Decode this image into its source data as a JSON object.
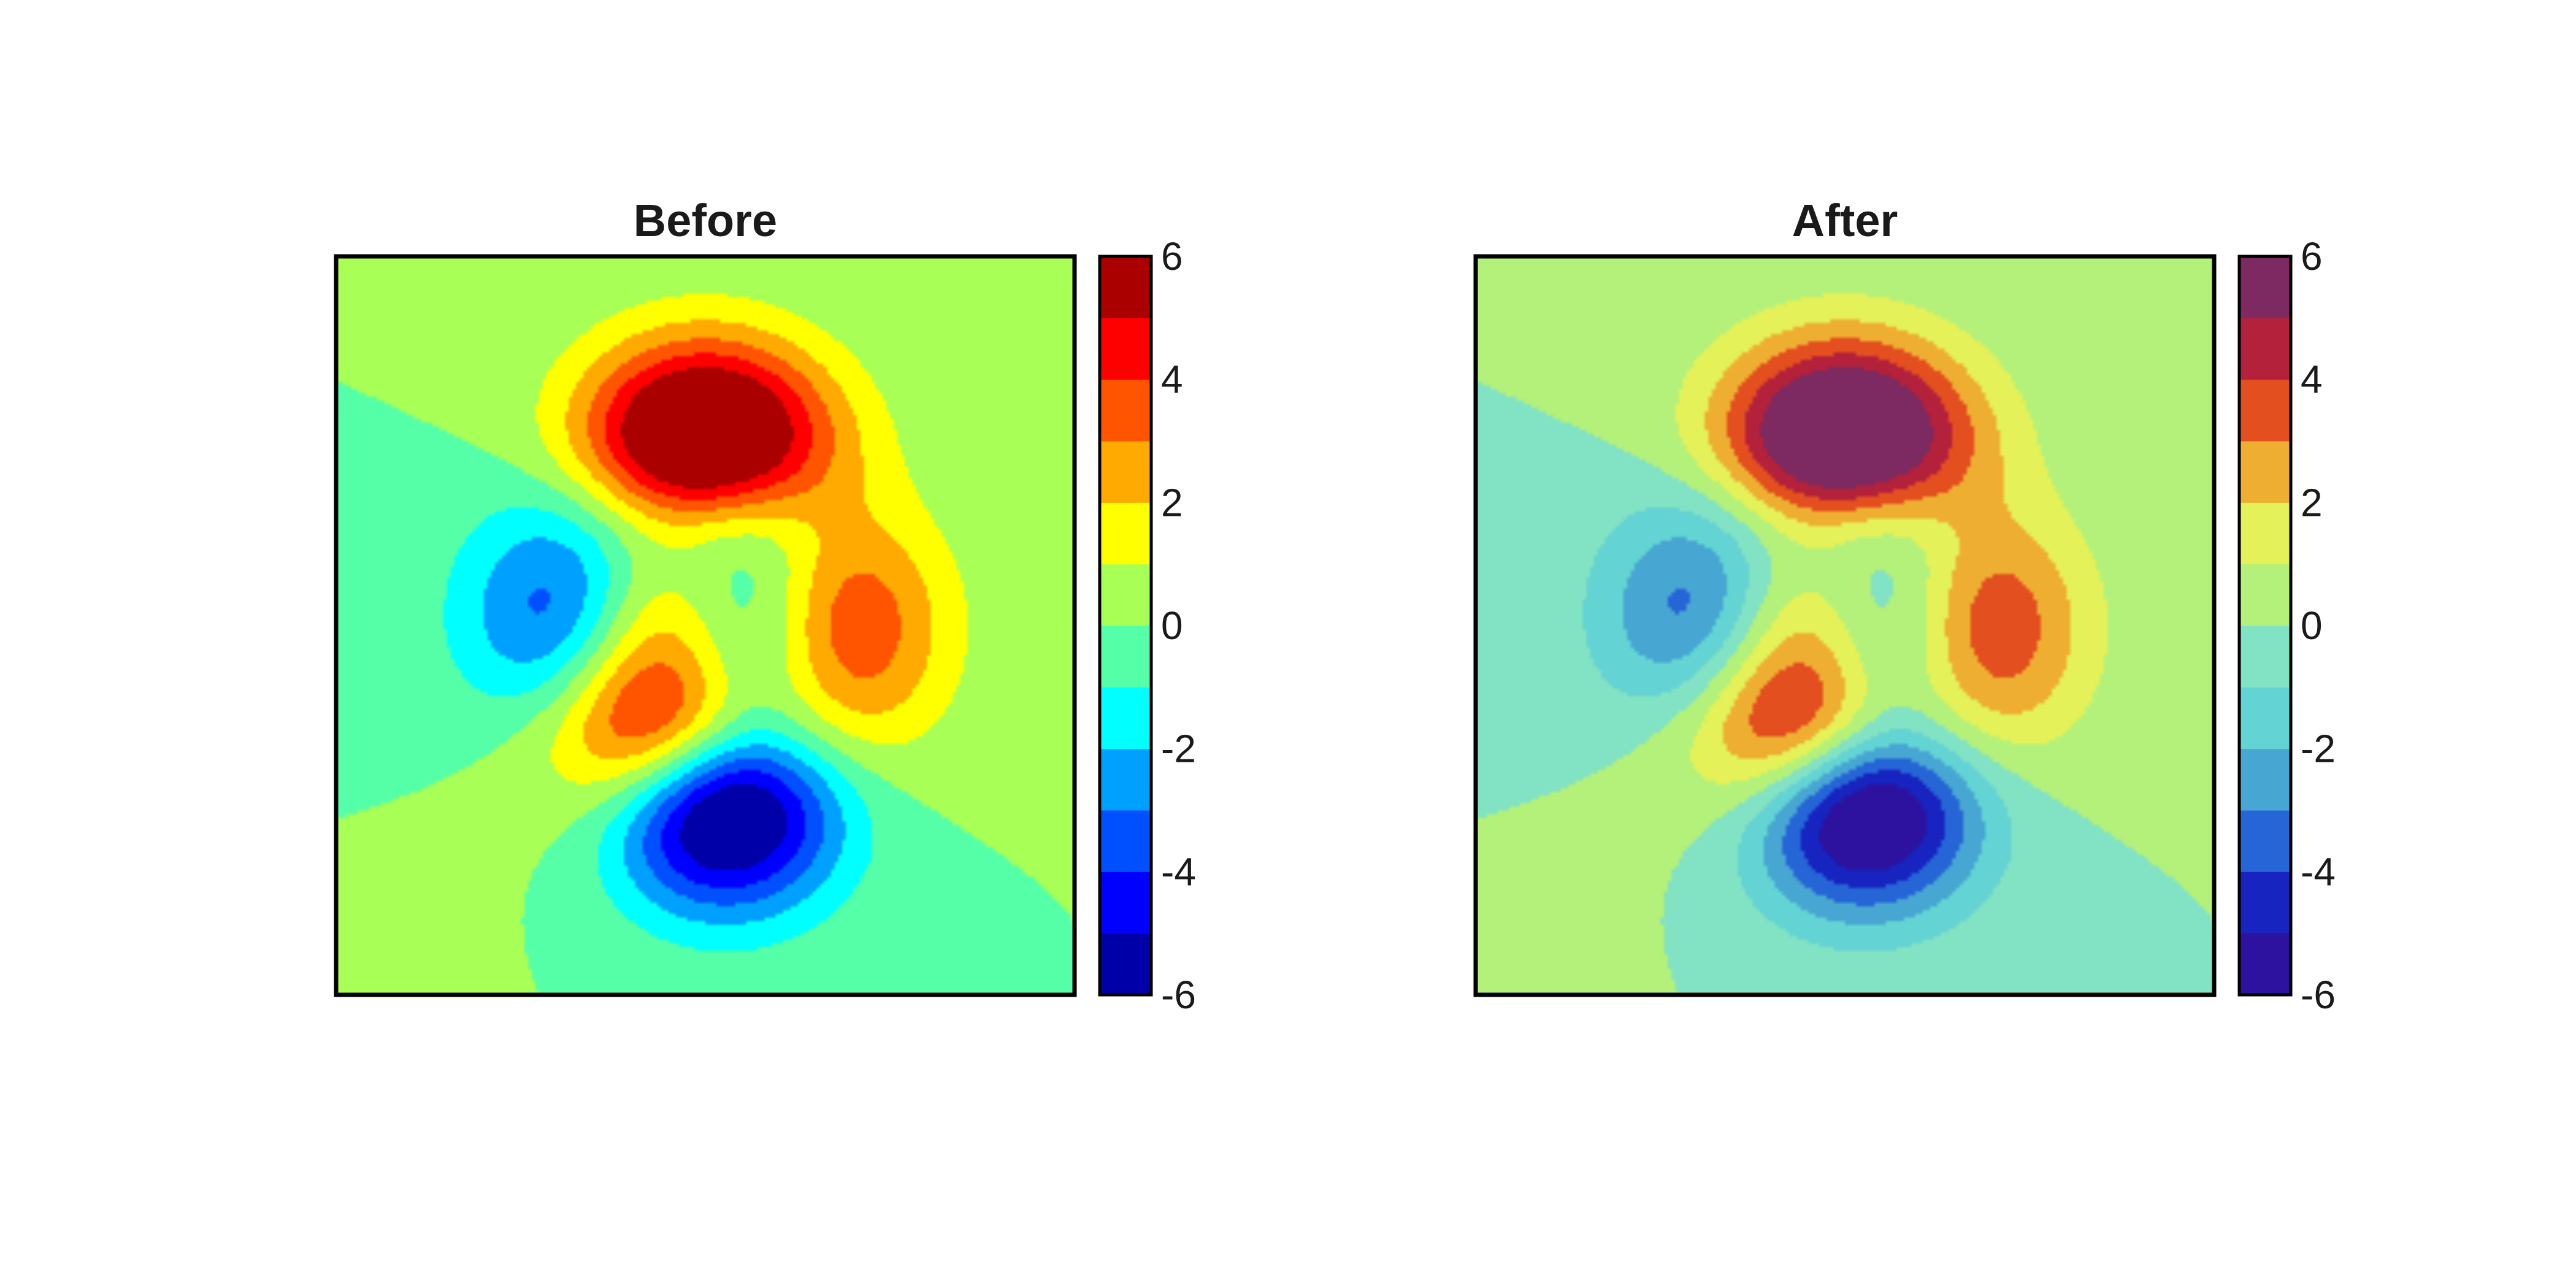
{
  "chart_data": [
    {
      "type": "heatmap",
      "subtype": "filled-contour",
      "title": "Before",
      "colormap_name": "jet",
      "colorbar": {
        "range": [
          -6,
          6
        ],
        "levels": [
          -6,
          -5,
          -4,
          -3,
          -2,
          -1,
          0,
          1,
          2,
          3,
          4,
          5,
          6
        ],
        "tick_values": [
          6,
          4,
          2,
          0,
          -2,
          -4,
          -6
        ],
        "tick_labels": [
          "6",
          "4",
          "2",
          "0",
          "-2",
          "-4",
          "-6"
        ],
        "colors": [
          "#0000a8",
          "#0000ff",
          "#0050ff",
          "#00a0ff",
          "#00ffff",
          "#55ffa8",
          "#a8ff55",
          "#ffff00",
          "#ffaa00",
          "#ff5500",
          "#ff0000",
          "#aa0000"
        ]
      },
      "axes_ticks_visible": false,
      "grid": false
    },
    {
      "type": "heatmap",
      "subtype": "filled-contour",
      "title": "After",
      "colormap_name": "custom",
      "colorbar": {
        "range": [
          -6,
          6
        ],
        "levels": [
          -6,
          -5,
          -4,
          -3,
          -2,
          -1,
          0,
          1,
          2,
          3,
          4,
          5,
          6
        ],
        "tick_values": [
          6,
          4,
          2,
          0,
          -2,
          -4,
          -6
        ],
        "tick_labels": [
          "6",
          "4",
          "2",
          "0",
          "-2",
          "-4",
          "-6"
        ],
        "colors": [
          "#2c129e",
          "#1724bf",
          "#2565d6",
          "#47a6d2",
          "#63d3d3",
          "#82e2c4",
          "#b4f17a",
          "#e4f158",
          "#eeae32",
          "#e34f1f",
          "#b3213b",
          "#7c2a61"
        ]
      },
      "axes_ticks_visible": false,
      "grid": false
    }
  ]
}
